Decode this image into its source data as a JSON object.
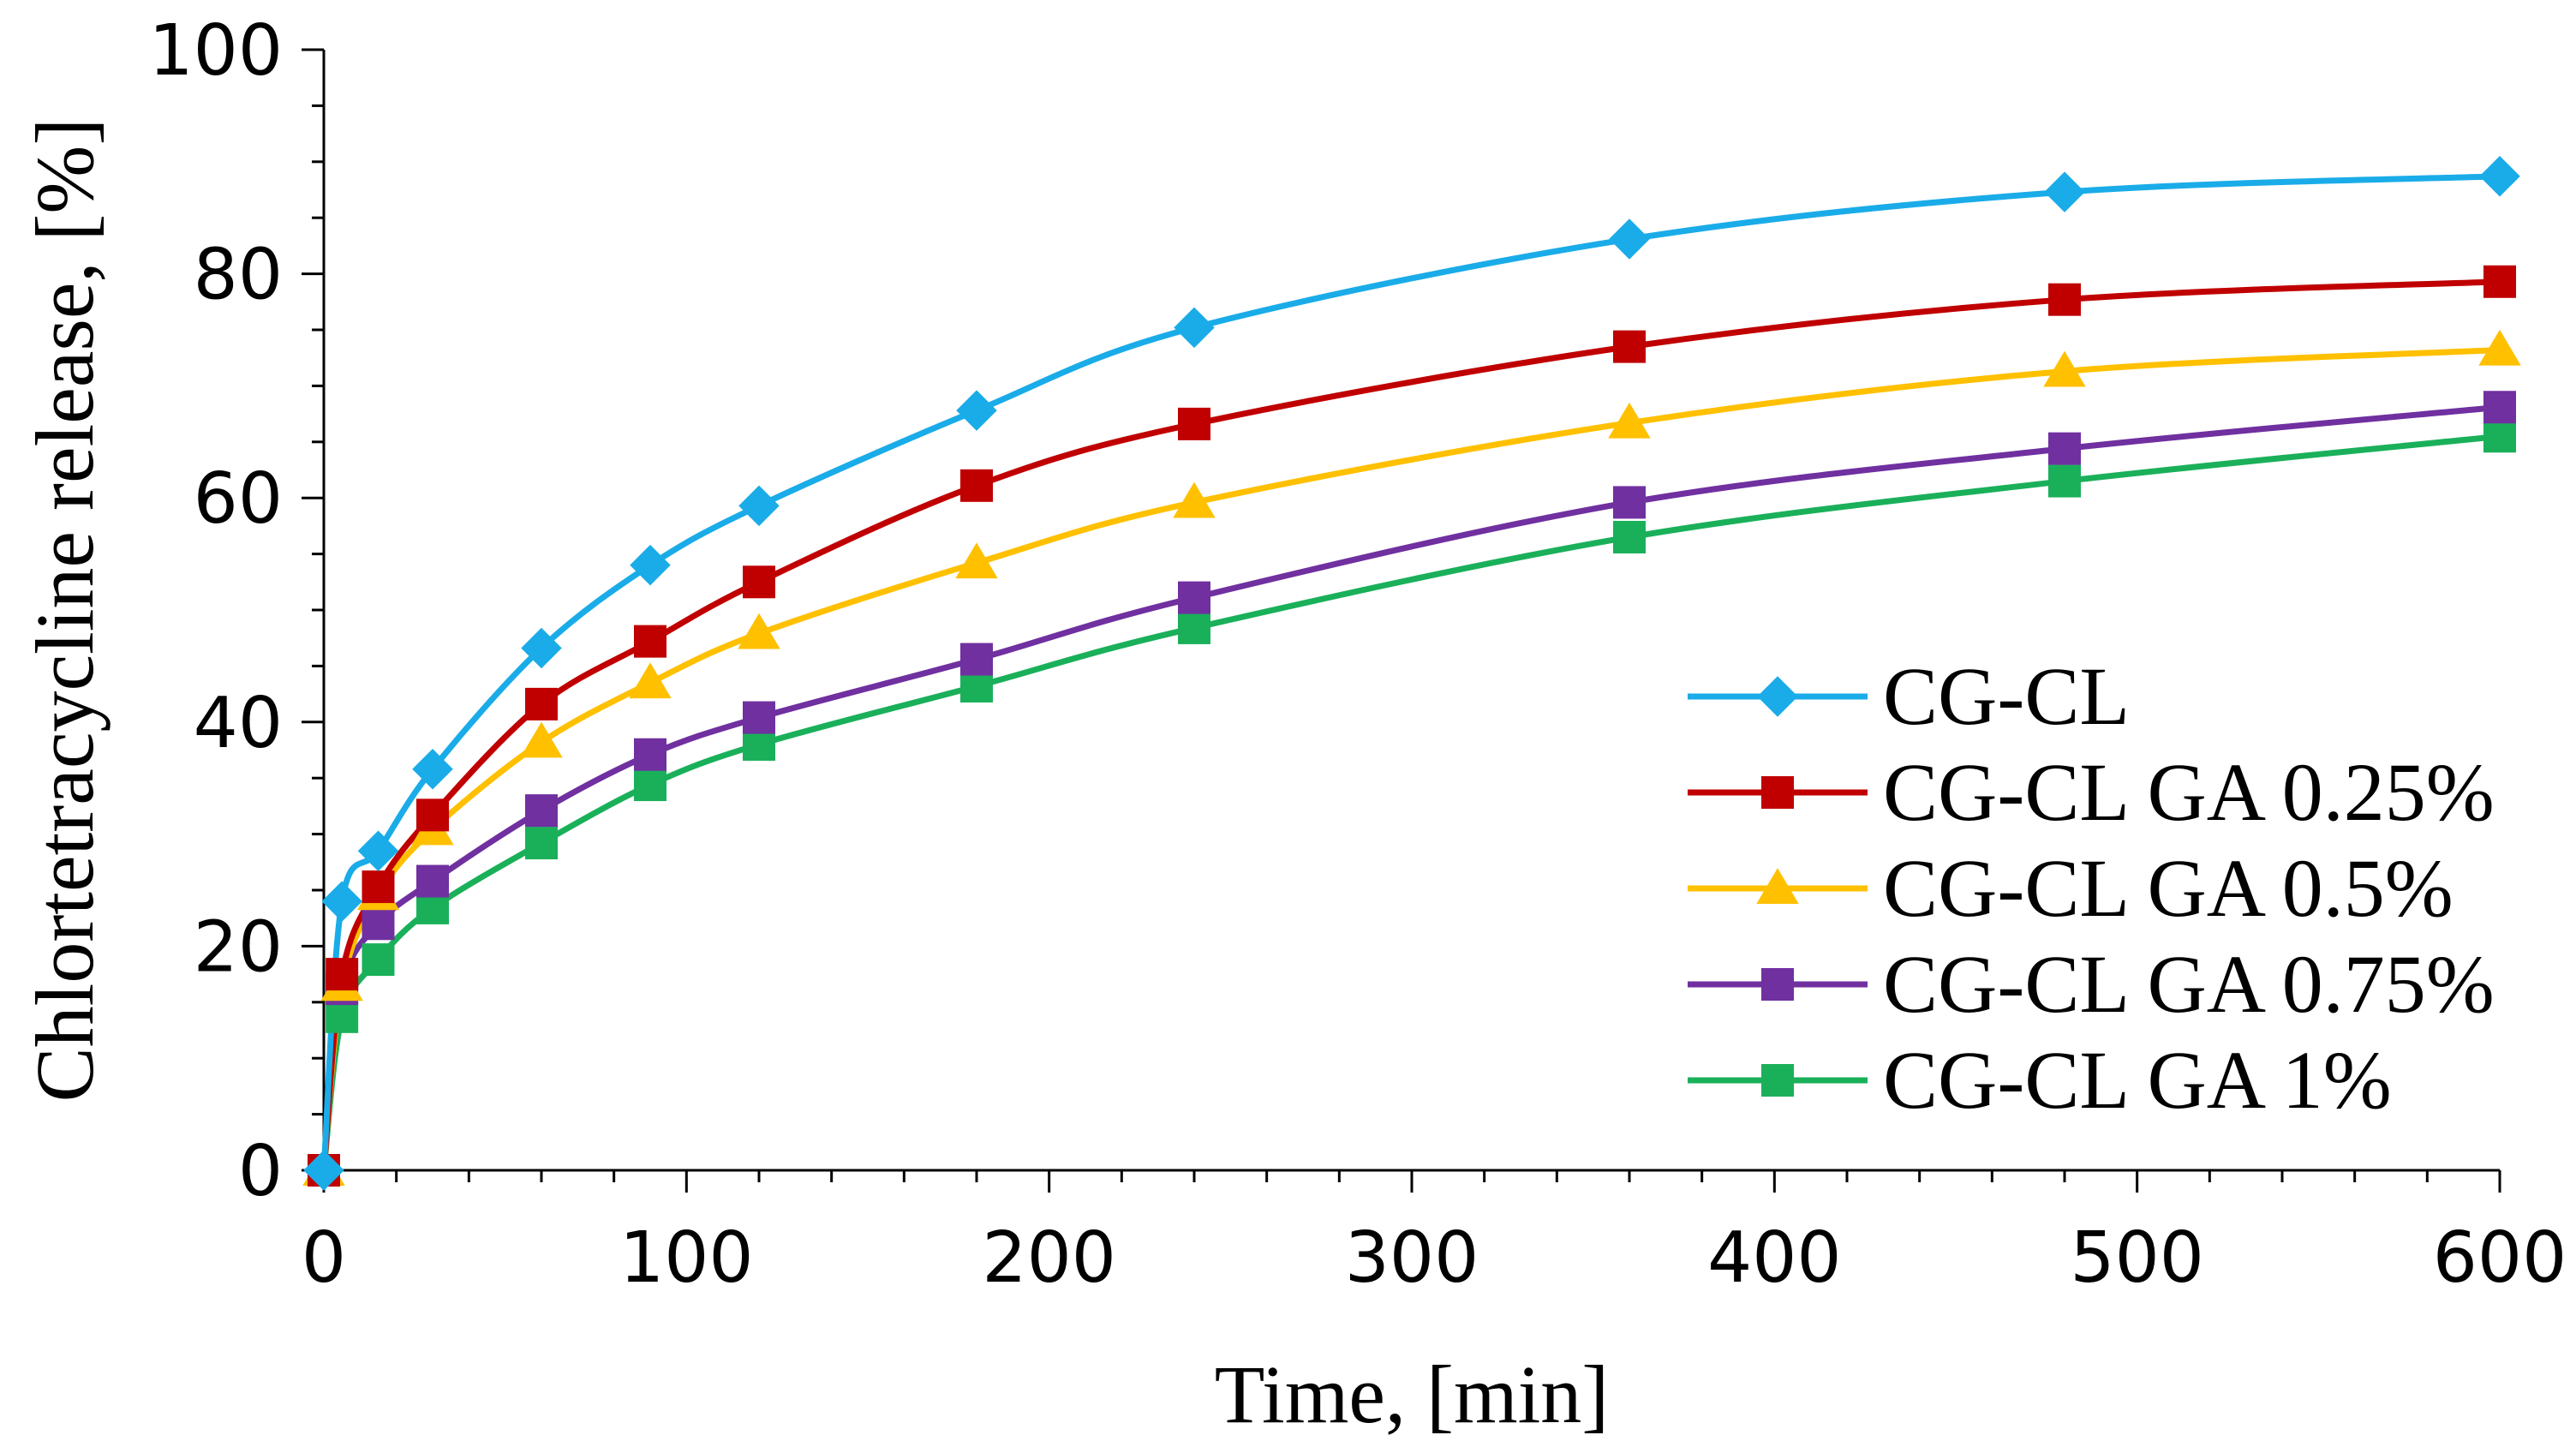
{
  "chart_data": {
    "type": "line",
    "title": "",
    "xlabel": "Time, [min]",
    "ylabel": "Chlortetracycline release, [%]",
    "xlim": [
      0,
      600
    ],
    "ylim": [
      0,
      100
    ],
    "x_ticks": [
      0,
      100,
      200,
      300,
      400,
      500,
      600
    ],
    "y_ticks": [
      0,
      20,
      40,
      60,
      80,
      100
    ],
    "grid": false,
    "legend_position": "bottom-right",
    "x": [
      0,
      5,
      15,
      30,
      60,
      90,
      120,
      180,
      240,
      360,
      480,
      600
    ],
    "series": [
      {
        "name": "CG-CL",
        "color": "#1AACE8",
        "marker": "diamond",
        "values": [
          0,
          24,
          28.5,
          35.8,
          46.6,
          54,
          59.3,
          67.8,
          75.2,
          83.1,
          87.3,
          88.7
        ]
      },
      {
        "name": "CG-CL GA 0.25%",
        "color": "#C00000",
        "marker": "square",
        "values": [
          0,
          17.5,
          25.3,
          31.7,
          41.6,
          47.2,
          52.5,
          61.1,
          66.6,
          73.5,
          77.7,
          79.3
        ]
      },
      {
        "name": "CG-CL GA 0.5%",
        "color": "#FFC000",
        "marker": "triangle",
        "values": [
          0,
          16.5,
          24.6,
          30.4,
          38.2,
          43.5,
          47.9,
          54.2,
          59.6,
          66.7,
          71.3,
          73.2
        ]
      },
      {
        "name": "CG-CL GA 0.75%",
        "color": "#7030A0",
        "marker": "square",
        "values": [
          0,
          16.2,
          22,
          25.8,
          32.1,
          37.1,
          40.4,
          45.6,
          51.1,
          59.6,
          64.4,
          68.1
        ]
      },
      {
        "name": "CG-CL GA 1%",
        "color": "#1AB05A",
        "marker": "square",
        "values": [
          0,
          13.7,
          18.8,
          23.4,
          29.2,
          34.4,
          38,
          43.2,
          48.4,
          56.5,
          61.5,
          65.5
        ]
      }
    ]
  }
}
